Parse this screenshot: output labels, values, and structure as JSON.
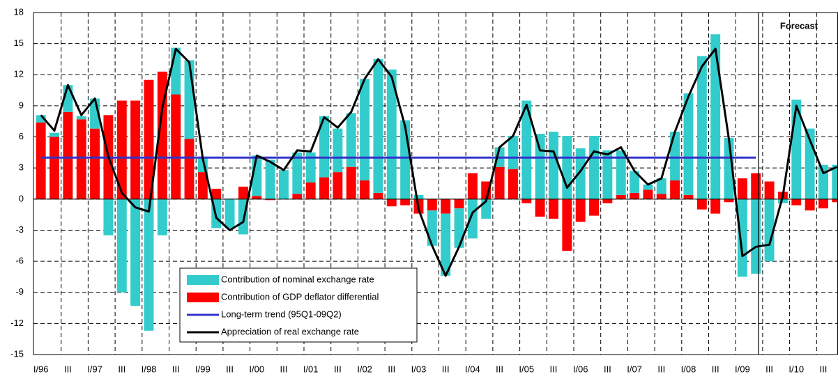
{
  "chart_data": {
    "type": "bar",
    "stacked": true,
    "annotation": "Forecast",
    "categories": [
      "I/96",
      null,
      "III",
      null,
      "I/97",
      null,
      "III",
      null,
      "I/98",
      null,
      "III",
      null,
      "I/99",
      null,
      "III",
      null,
      "I/00",
      null,
      "III",
      null,
      "I/01",
      null,
      "III",
      null,
      "I/02",
      null,
      "III",
      null,
      "I/03",
      null,
      "III",
      null,
      "I/04",
      null,
      "III",
      null,
      "I/05",
      null,
      "III",
      null,
      "I/06",
      null,
      "III",
      null,
      "I/07",
      null,
      "III",
      null,
      "I/08",
      null,
      "III",
      null,
      "I/09",
      null,
      "III",
      null,
      "I/10",
      null,
      "III",
      null
    ],
    "ylim": [
      -15,
      18
    ],
    "yticks": [
      -15,
      -12,
      -9,
      -6,
      -3,
      0,
      3,
      6,
      9,
      12,
      15,
      18
    ],
    "grid": true,
    "series": [
      {
        "name": "Contribution of GDP deflator differential",
        "type": "bar",
        "color": "#ff0000",
        "values": [
          7.4,
          6.0,
          8.4,
          7.7,
          6.8,
          8.1,
          9.5,
          9.5,
          11.5,
          12.3,
          10.1,
          5.8,
          2.6,
          1.0,
          0,
          1.2,
          0.3,
          -0.1,
          0,
          0.5,
          1.6,
          2.1,
          2.6,
          3.1,
          1.8,
          0.6,
          -0.7,
          -0.6,
          -1.4,
          -1.1,
          -1.4,
          -0.9,
          2.5,
          1.7,
          3.1,
          2.9,
          -0.4,
          -1.7,
          -1.9,
          -5.0,
          -2.2,
          -1.6,
          -0.4,
          0.4,
          0.6,
          0.9,
          0.5,
          1.8,
          0.4,
          -1.0,
          -1.4,
          -0.3,
          2.0,
          2.5,
          1.7,
          0.7,
          -0.6,
          -1.1,
          -0.9,
          -0.3
        ]
      },
      {
        "name": "Contribution of nominal exchange rate",
        "type": "bar",
        "color": "#33cccc",
        "values": [
          0.7,
          0.4,
          2.6,
          0.3,
          2.9,
          -3.5,
          -9.0,
          -10.3,
          -12.7,
          -3.5,
          4.5,
          7.6,
          1.4,
          -2.8,
          -2.8,
          -3.4,
          3.9,
          3.8,
          2.8,
          4.0,
          2.9,
          5.9,
          4.2,
          5.2,
          9.8,
          12.9,
          12.5,
          7.6,
          0.4,
          -3.4,
          -6.0,
          -3.8,
          -3.8,
          -1.9,
          1.9,
          3.2,
          9.5,
          6.3,
          6.5,
          6.1,
          4.9,
          6.1,
          4.7,
          4.3,
          2.1,
          0.5,
          1.5,
          4.7,
          9.8,
          13.8,
          15.9,
          5.9,
          -7.5,
          -7.2,
          -6.0,
          -0.4,
          9.6,
          6.8,
          3.3,
          3.3
        ]
      },
      {
        "name": "Long-term trend (95Q1-09Q2)",
        "type": "line",
        "color": "#3333cc",
        "values": [
          4,
          4,
          4,
          4,
          4,
          4,
          4,
          4,
          4,
          4,
          4,
          4,
          4,
          4,
          4,
          4,
          4,
          4,
          4,
          4,
          4,
          4,
          4,
          4,
          4,
          4,
          4,
          4,
          4,
          4,
          4,
          4,
          4,
          4,
          4,
          4,
          4,
          4,
          4,
          4,
          4,
          4,
          4,
          4,
          4,
          4,
          4,
          4,
          4,
          4,
          4,
          4,
          4,
          4,
          null,
          null,
          null,
          null,
          null,
          null
        ]
      },
      {
        "name": "Appreciation of real exchange rate",
        "type": "line",
        "color": "#000000",
        "values": [
          8.1,
          6.6,
          11.0,
          8.1,
          9.7,
          4.1,
          0.6,
          -0.8,
          -1.2,
          8.8,
          14.5,
          13.2,
          3.9,
          -1.8,
          -3.0,
          -2.2,
          4.2,
          3.6,
          2.8,
          4.7,
          4.6,
          7.9,
          6.9,
          8.4,
          11.6,
          13.5,
          11.8,
          7.0,
          -1.0,
          -4.5,
          -7.4,
          -4.6,
          -1.3,
          -0.2,
          5.0,
          6.1,
          9.1,
          4.7,
          4.6,
          1.1,
          2.7,
          4.6,
          4.3,
          5.0,
          2.7,
          1.4,
          2.0,
          6.5,
          9.9,
          12.8,
          14.5,
          5.8,
          -5.5,
          -4.6,
          -4.4,
          0.3,
          9.0,
          5.7,
          2.5,
          3.1
        ]
      }
    ]
  }
}
